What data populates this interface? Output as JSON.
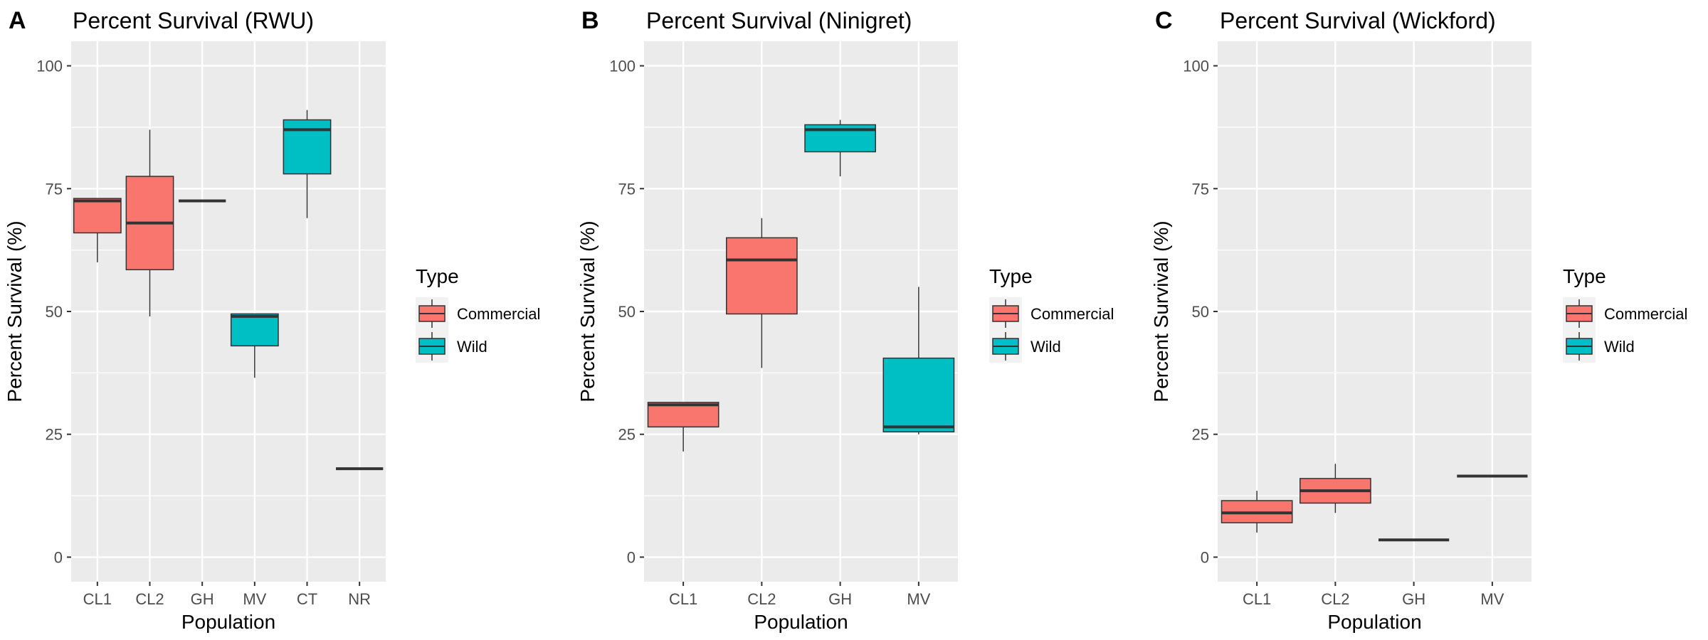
{
  "figure": {
    "legend_title": "Type",
    "legend_entries": [
      {
        "label": "Commercial",
        "color": "#F8766D"
      },
      {
        "label": "Wild",
        "color": "#00BFC4"
      }
    ],
    "colors": {
      "panel_bg": "#EBEBEB",
      "grid": "#FFFFFF",
      "box_outline": "#333333",
      "axis_text": "#4D4D4D"
    }
  },
  "chart_data": [
    {
      "type": "box",
      "tag": "A",
      "title": "Percent Survival (RWU)",
      "xlabel": "Population",
      "ylabel": "Percent Survival (%)",
      "ylim": [
        -5,
        105
      ],
      "yticks": [
        0,
        25,
        50,
        75,
        100
      ],
      "grid": true,
      "legend_position": "right",
      "categories": [
        "CL1",
        "CL2",
        "GH",
        "MV",
        "CT",
        "NR"
      ],
      "boxes": [
        {
          "category": "CL1",
          "group": "Commercial",
          "min": 60,
          "q1": 66,
          "median": 72.5,
          "q3": 73,
          "max": 73
        },
        {
          "category": "CL2",
          "group": "Commercial",
          "min": 49,
          "q1": 58.5,
          "median": 68,
          "q3": 77.5,
          "max": 87
        },
        {
          "category": "GH",
          "group": "Commercial",
          "min": 72.5,
          "q1": 72.5,
          "median": 72.5,
          "q3": 72.5,
          "max": 72.5
        },
        {
          "category": "MV",
          "group": "Wild",
          "min": 36.5,
          "q1": 43,
          "median": 49,
          "q3": 49.5,
          "max": 49.5
        },
        {
          "category": "CT",
          "group": "Wild",
          "min": 69,
          "q1": 78,
          "median": 87,
          "q3": 89,
          "max": 91
        },
        {
          "category": "NR",
          "group": "Wild",
          "min": 18,
          "q1": 18,
          "median": 18,
          "q3": 18,
          "max": 18
        }
      ]
    },
    {
      "type": "box",
      "tag": "B",
      "title": "Percent Survival (Ninigret)",
      "xlabel": "Population",
      "ylabel": "Percent Survival (%)",
      "ylim": [
        -5,
        105
      ],
      "yticks": [
        0,
        25,
        50,
        75,
        100
      ],
      "grid": true,
      "legend_position": "right",
      "categories": [
        "CL1",
        "CL2",
        "GH",
        "MV"
      ],
      "boxes": [
        {
          "category": "CL1",
          "group": "Commercial",
          "min": 21.5,
          "q1": 26.5,
          "median": 31,
          "q3": 31.5,
          "max": 31.5
        },
        {
          "category": "CL2",
          "group": "Commercial",
          "min": 38.5,
          "q1": 49.5,
          "median": 60.5,
          "q3": 65,
          "max": 69
        },
        {
          "category": "GH",
          "group": "Wild",
          "min": 77.5,
          "q1": 82.5,
          "median": 87,
          "q3": 88,
          "max": 89
        },
        {
          "category": "MV",
          "group": "Wild",
          "min": 25,
          "q1": 25.5,
          "median": 26.5,
          "q3": 40.5,
          "max": 55
        }
      ]
    },
    {
      "type": "box",
      "tag": "C",
      "title": "Percent Survival (Wickford)",
      "xlabel": "Population",
      "ylabel": "Percent Survival (%)",
      "ylim": [
        -5,
        105
      ],
      "yticks": [
        0,
        25,
        50,
        75,
        100
      ],
      "grid": true,
      "legend_position": "right",
      "categories": [
        "CL1",
        "CL2",
        "GH",
        "MV"
      ],
      "boxes": [
        {
          "category": "CL1",
          "group": "Commercial",
          "min": 5,
          "q1": 7,
          "median": 9,
          "q3": 11.5,
          "max": 13.5
        },
        {
          "category": "CL2",
          "group": "Commercial",
          "min": 9,
          "q1": 11,
          "median": 13.5,
          "q3": 16,
          "max": 19
        },
        {
          "category": "GH",
          "group": "Commercial",
          "min": 3.5,
          "q1": 3.5,
          "median": 3.5,
          "q3": 3.5,
          "max": 3.5
        },
        {
          "category": "MV",
          "group": "Commercial",
          "min": 16.5,
          "q1": 16.5,
          "median": 16.5,
          "q3": 16.5,
          "max": 16.5
        }
      ]
    }
  ]
}
